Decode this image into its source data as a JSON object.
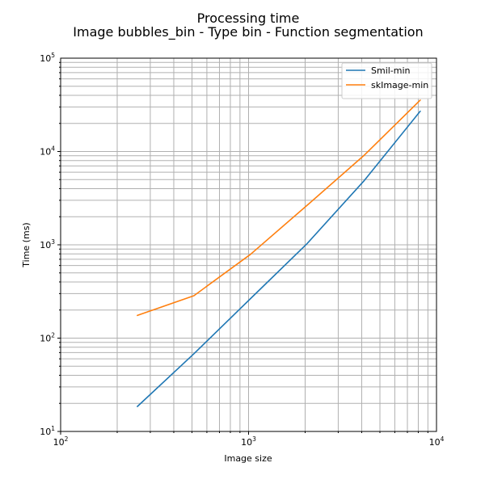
{
  "chart_data": {
    "type": "line",
    "title": "Processing time",
    "subtitle": "Image bubbles_bin - Type bin - Function segmentation",
    "xlabel": "Image size",
    "ylabel": "Time (ms)",
    "xscale": "log",
    "yscale": "log",
    "xlim": [
      100,
      10000
    ],
    "ylim": [
      10,
      100000
    ],
    "grid": "major and minor",
    "legend_position": "top-right",
    "x_ticks": [
      {
        "base": "10",
        "exp": "2",
        "value": 100
      },
      {
        "base": "10",
        "exp": "3",
        "value": 1000
      },
      {
        "base": "10",
        "exp": "4",
        "value": 10000
      }
    ],
    "y_ticks": [
      {
        "base": "10",
        "exp": "1",
        "value": 10
      },
      {
        "base": "10",
        "exp": "2",
        "value": 100
      },
      {
        "base": "10",
        "exp": "3",
        "value": 1000
      },
      {
        "base": "10",
        "exp": "4",
        "value": 10000
      },
      {
        "base": "10",
        "exp": "5",
        "value": 100000
      }
    ],
    "x": [
      256,
      512,
      1024,
      2048,
      4096,
      8192
    ],
    "series": [
      {
        "name": "Smil-min",
        "color": "#1f77b4",
        "values": [
          18.5,
          68,
          265,
          1030,
          4800,
          27000
        ]
      },
      {
        "name": "skImage-min",
        "color": "#ff7f0e",
        "values": [
          175,
          285,
          790,
          2650,
          9000,
          35500
        ]
      }
    ]
  }
}
